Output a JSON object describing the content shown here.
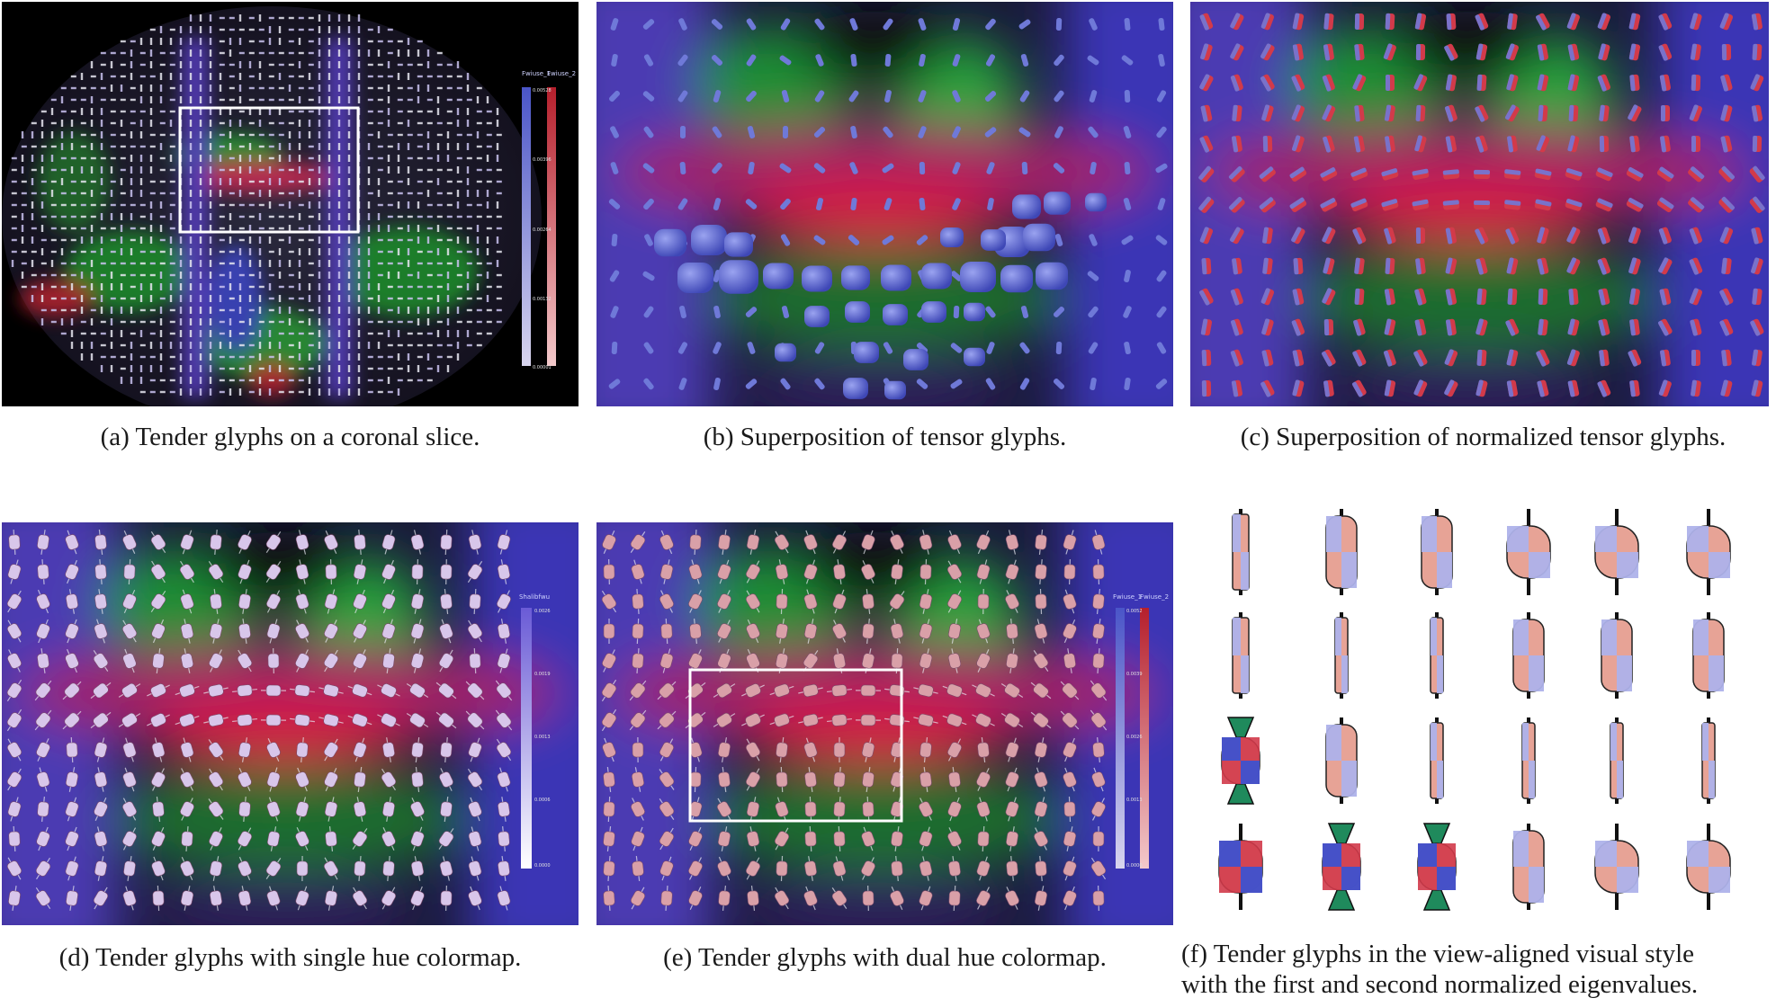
{
  "figure": {
    "panels": [
      {
        "id": "a",
        "caption": "(a) Tender glyphs on a coronal slice.",
        "colorbar_labels": [
          "Fwiuse_1",
          "Fwiuse_2"
        ],
        "colorbar_ticks": [
          "0.00528",
          "0.00396",
          "0.00264",
          "0.00132",
          "0.00001"
        ]
      },
      {
        "id": "b",
        "caption": "(b) Superposition of tensor glyphs."
      },
      {
        "id": "c",
        "caption": "(c) Superposition of normalized tensor glyphs."
      },
      {
        "id": "d",
        "caption": "(d) Tender glyphs with single hue colormap.",
        "colorbar_labels": [
          "Shalibfwu"
        ],
        "colorbar_ticks": [
          "0.0026",
          "0.0019",
          "0.0013",
          "0.0006",
          "0.0000"
        ]
      },
      {
        "id": "e",
        "caption": "(e) Tender glyphs with dual hue colormap.",
        "colorbar_labels": [
          "Fwiuse_1",
          "Fwiuse_2"
        ],
        "colorbar_ticks": [
          "0.0052",
          "0.0039",
          "0.0026",
          "0.0013",
          "0.0000"
        ]
      },
      {
        "id": "f",
        "caption_lines": [
          "(f) Tender glyphs in the view-aligned visual style",
          "with the first and second normalized eigenvalues."
        ]
      }
    ],
    "colors": {
      "blue_glyph": "#6f79d8",
      "red_glyph": "#d23a4a",
      "pink_glyph": "#d9a0a8",
      "green_cap": "#1f8a5c",
      "highlight_box": "#ffffff"
    }
  }
}
